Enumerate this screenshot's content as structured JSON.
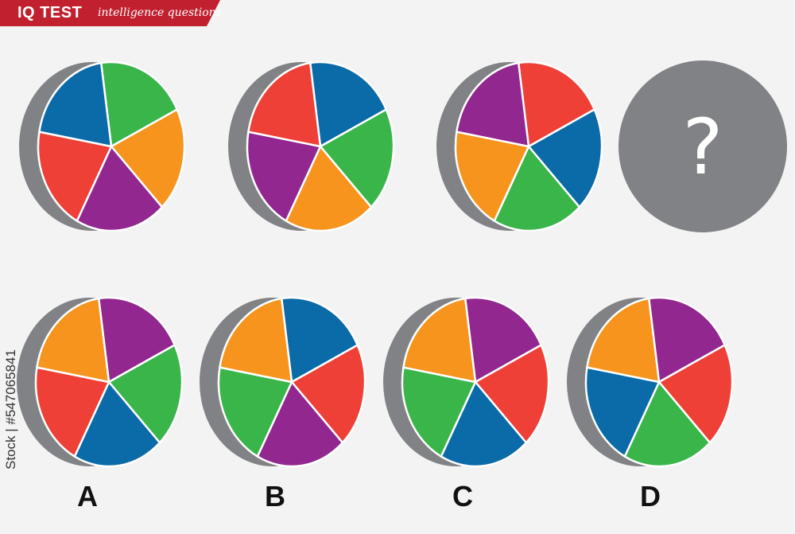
{
  "header": {
    "title": "IQ TEST",
    "subtitle": "intelligence questions",
    "color": "#c1202f"
  },
  "colors": {
    "blue": "#0b6aa8",
    "green": "#3ab54a",
    "orange": "#f7941d",
    "purple": "#92278f",
    "red": "#ee4036",
    "shadow": "#808285"
  },
  "question": {
    "mark": "?"
  },
  "sequence": [
    {
      "slices_clockwise": [
        "green",
        "orange",
        "purple",
        "red",
        "blue"
      ]
    },
    {
      "slices_clockwise": [
        "blue",
        "green",
        "orange",
        "purple",
        "red"
      ]
    },
    {
      "slices_clockwise": [
        "red",
        "blue",
        "green",
        "orange",
        "purple"
      ]
    }
  ],
  "options": [
    {
      "label": "A",
      "slices_clockwise": [
        "purple",
        "green",
        "blue",
        "red",
        "orange"
      ]
    },
    {
      "label": "B",
      "slices_clockwise": [
        "blue",
        "red",
        "purple",
        "green",
        "orange"
      ]
    },
    {
      "label": "C",
      "slices_clockwise": [
        "purple",
        "red",
        "blue",
        "green",
        "orange"
      ]
    },
    {
      "label": "D",
      "slices_clockwise": [
        "purple",
        "red",
        "green",
        "blue",
        "orange"
      ]
    }
  ],
  "watermark": {
    "stock_id": "Stock | #547065841"
  }
}
